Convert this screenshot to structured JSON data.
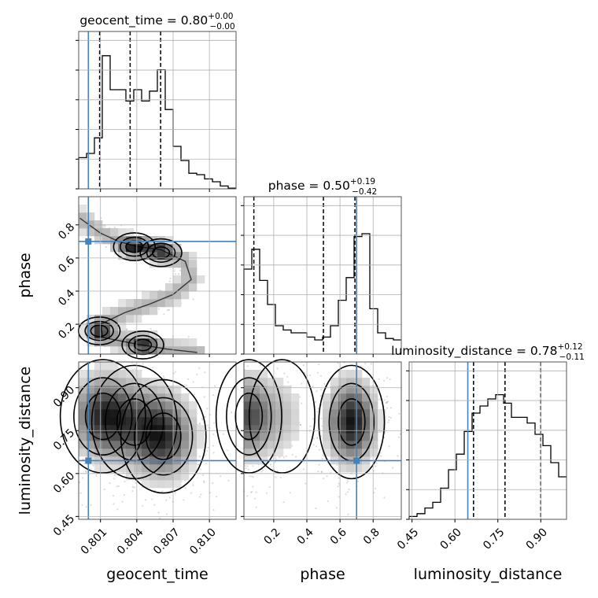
{
  "chart_data": {
    "type": "corner",
    "parameters": [
      {
        "name": "geocent_time",
        "title": "geocent_time = 0.80",
        "sup": "+0.00",
        "sub": "−0.00",
        "range": [
          0.7992,
          0.8122
        ],
        "ticks": [
          0.801,
          0.804,
          0.807,
          0.81
        ],
        "tick_labels": [
          "0.801",
          "0.804",
          "0.807",
          "0.810"
        ],
        "truth": 0.8,
        "quantiles": [
          0.80093,
          0.80345,
          0.80597
        ],
        "hist_max": 1.0,
        "hist": [
          0.22,
          0.25,
          0.36,
          0.94,
          0.7,
          0.7,
          0.62,
          0.7,
          0.62,
          0.69,
          0.84,
          0.56,
          0.3,
          0.2,
          0.11,
          0.1,
          0.07,
          0.05,
          0.02,
          0.005
        ]
      },
      {
        "name": "phase",
        "title": "phase = 0.50",
        "sup": "+0.19",
        "sub": "−0.42",
        "range": [
          0.02,
          0.97
        ],
        "ticks": [
          0.2,
          0.4,
          0.6,
          0.8
        ],
        "tick_labels": [
          "0.2",
          "0.4",
          "0.6",
          "0.8"
        ],
        "truth": 0.7,
        "quantiles": [
          0.08,
          0.5,
          0.69
        ],
        "hist_max": 1.0,
        "hist": [
          0.6,
          0.74,
          0.52,
          0.35,
          0.2,
          0.17,
          0.15,
          0.15,
          0.12,
          0.1,
          0.12,
          0.2,
          0.38,
          0.54,
          0.83,
          0.85,
          0.32,
          0.15,
          0.11,
          0.1
        ]
      },
      {
        "name": "luminosity_distance",
        "title": "luminosity_distance = 0.78",
        "sup": "+0.12",
        "sub": "−0.11",
        "range": [
          0.44,
          0.99
        ],
        "ticks": [
          0.45,
          0.6,
          0.75,
          0.9
        ],
        "tick_labels": [
          "0.45",
          "0.60",
          "0.75",
          "0.90"
        ],
        "truth": 0.645,
        "quantiles": [
          0.665,
          0.775,
          0.9
        ],
        "hist_max": 1.0,
        "hist": [
          0.02,
          0.04,
          0.08,
          0.12,
          0.22,
          0.35,
          0.46,
          0.62,
          0.75,
          0.8,
          0.85,
          0.88,
          0.82,
          0.72,
          0.72,
          0.68,
          0.6,
          0.52,
          0.4,
          0.3
        ]
      }
    ],
    "axis_labels": [
      "geocent_time",
      "phase",
      "luminosity_distance"
    ],
    "truth_color": "#4682b4",
    "hist_color": "#000000",
    "grid": true,
    "panels_2d": [
      {
        "x": "geocent_time",
        "y": "phase",
        "truth_point": [
          0.8,
          0.7
        ],
        "ridge": [
          [
            0.7993,
            0.84
          ],
          [
            0.801,
            0.75
          ],
          [
            0.8025,
            0.7
          ],
          [
            0.804,
            0.67
          ],
          [
            0.806,
            0.65
          ],
          [
            0.808,
            0.58
          ],
          [
            0.8085,
            0.47
          ],
          [
            0.807,
            0.38
          ],
          [
            0.805,
            0.32
          ],
          [
            0.803,
            0.27
          ],
          [
            0.801,
            0.2
          ],
          [
            0.8012,
            0.12
          ],
          [
            0.804,
            0.08
          ],
          [
            0.8065,
            0.05
          ],
          [
            0.809,
            0.03
          ]
        ],
        "peaks": [
          [
            0.8038,
            0.668,
            0.95
          ],
          [
            0.806,
            0.632,
            0.85
          ],
          [
            0.8009,
            0.16,
            0.9
          ],
          [
            0.8045,
            0.075,
            0.85
          ]
        ]
      },
      {
        "x": "geocent_time",
        "y": "luminosity_distance",
        "truth_point": [
          0.8,
          0.645
        ],
        "peaks": [
          [
            0.8012,
            0.8,
            1.0
          ],
          [
            0.8062,
            0.73,
            1.0
          ],
          [
            0.8038,
            0.78,
            0.5
          ]
        ],
        "spread": [
          0.0016,
          0.09
        ]
      },
      {
        "x": "phase",
        "y": "luminosity_distance",
        "truth_point": [
          0.7,
          0.645
        ],
        "peaks": [
          [
            0.05,
            0.8,
            0.75
          ],
          [
            0.67,
            0.78,
            1.0
          ],
          [
            0.25,
            0.8,
            0.25
          ]
        ],
        "spread": [
          0.09,
          0.09
        ]
      }
    ]
  }
}
